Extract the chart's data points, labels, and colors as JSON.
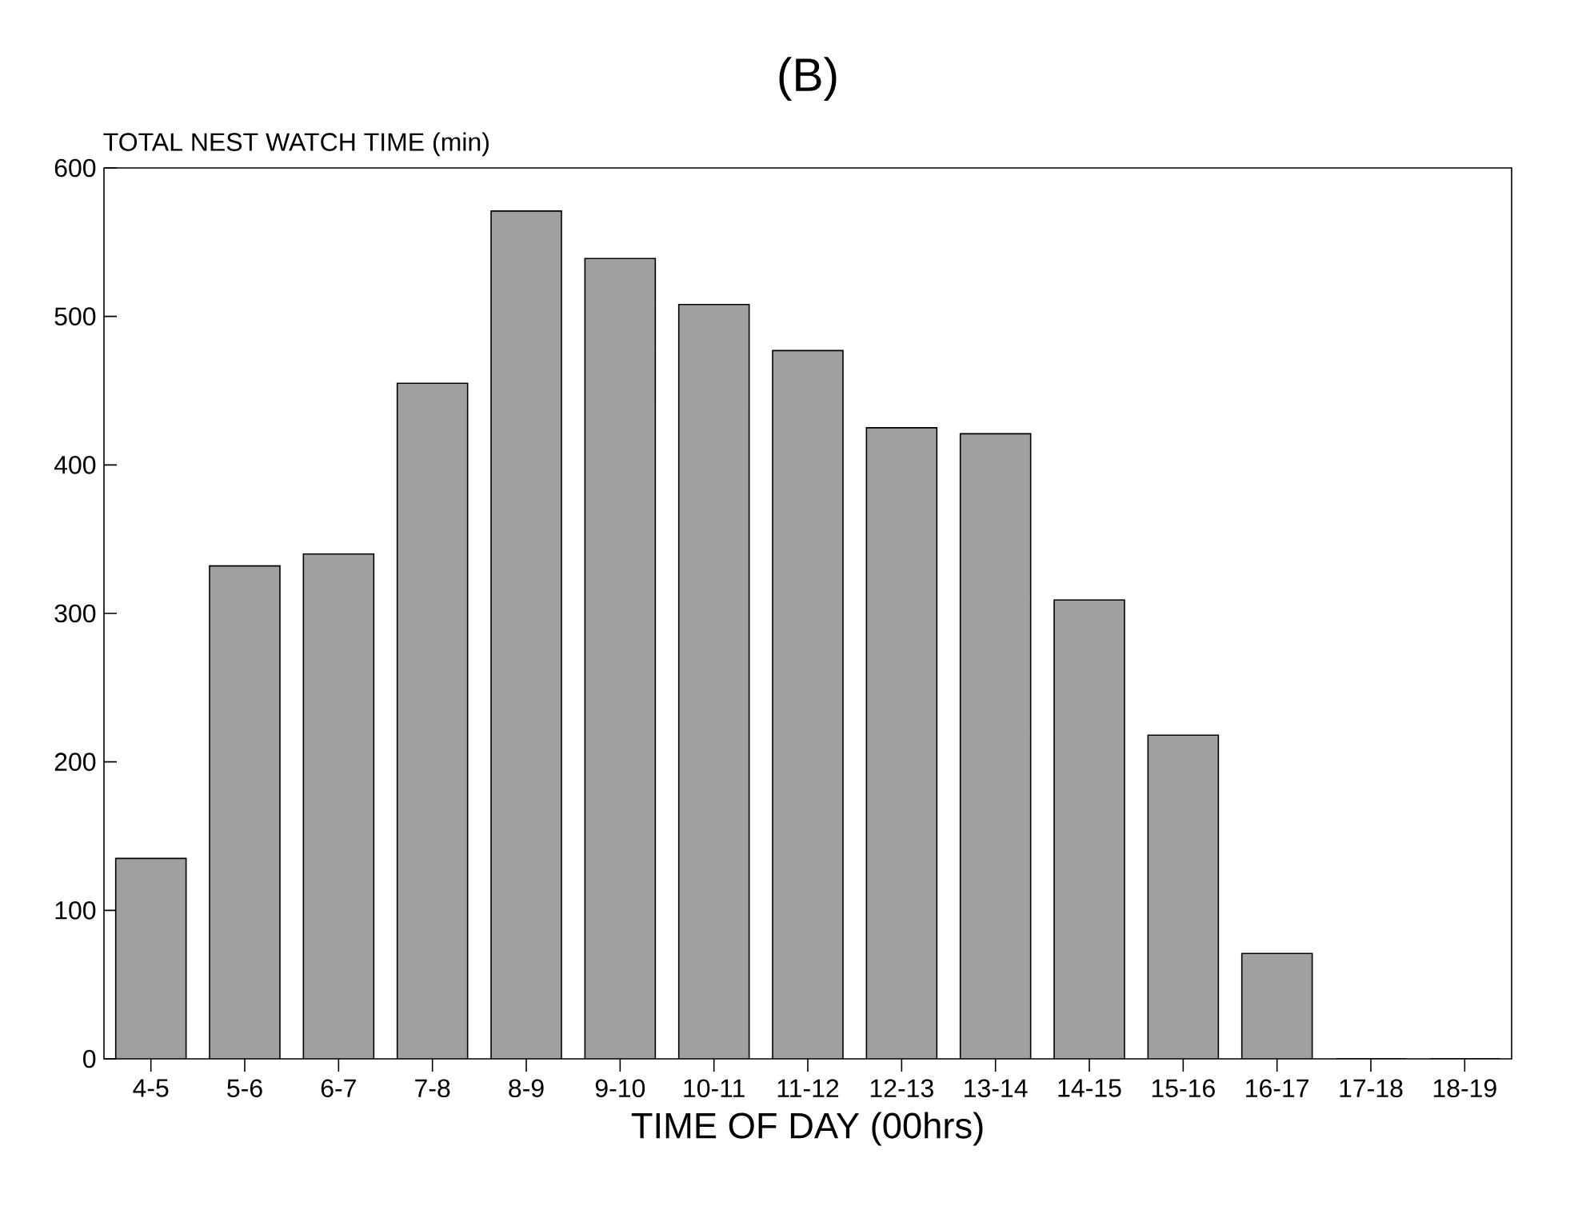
{
  "chart_data": {
    "type": "bar",
    "title": "(B)",
    "xlabel": "TIME OF DAY (00hrs)",
    "ylabel": "TOTAL NEST WATCH TIME (min)",
    "categories": [
      "4-5",
      "5-6",
      "6-7",
      "7-8",
      "8-9",
      "9-10",
      "10-11",
      "11-12",
      "12-13",
      "13-14",
      "14-15",
      "15-16",
      "16-17",
      "17-18",
      "18-19"
    ],
    "values": [
      135,
      332,
      340,
      455,
      571,
      539,
      508,
      477,
      425,
      421,
      309,
      218,
      71,
      0,
      0
    ],
    "color": "#a0a0a0",
    "ylim": [
      0,
      600
    ],
    "yticks": [
      0,
      100,
      200,
      300,
      400,
      500,
      600
    ],
    "grid": false
  }
}
